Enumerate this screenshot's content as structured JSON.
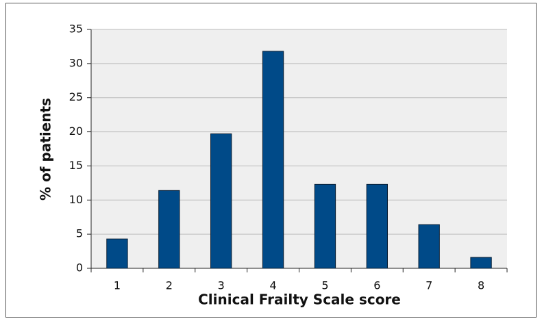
{
  "chart_data": {
    "type": "bar",
    "x_label": "Clinical Frailty Scale score",
    "y_label": "% of patients",
    "categories": [
      "1",
      "2",
      "3",
      "4",
      "5",
      "6",
      "7",
      "8"
    ],
    "values": [
      4.3,
      11.4,
      19.7,
      31.8,
      12.3,
      12.3,
      6.4,
      1.6
    ],
    "color": "#004a88",
    "ylim": [
      0,
      35
    ],
    "yticks": [
      0,
      5,
      10,
      15,
      20,
      25,
      30,
      35
    ],
    "grid": true
  }
}
